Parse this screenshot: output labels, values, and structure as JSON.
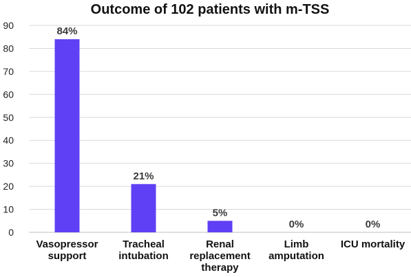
{
  "chart_data": {
    "type": "bar",
    "title": "Outcome of 102 patients with m-TSS",
    "categories": [
      [
        "Vasopressor",
        "support"
      ],
      [
        "Tracheal",
        "intubation"
      ],
      [
        "Renal",
        "replacement",
        "therapy"
      ],
      [
        "Limb",
        "amputation"
      ],
      [
        "ICU mortality"
      ]
    ],
    "values": [
      84,
      21,
      5,
      0,
      0
    ],
    "data_labels": [
      "84%",
      "21%",
      "5%",
      "0%",
      "0%"
    ],
    "ylim": [
      0,
      90
    ],
    "yticks": [
      0,
      10,
      20,
      30,
      40,
      50,
      60,
      70,
      80,
      90
    ],
    "grid": true,
    "bar_color": "#6040f5",
    "xlabel": "",
    "ylabel": ""
  }
}
